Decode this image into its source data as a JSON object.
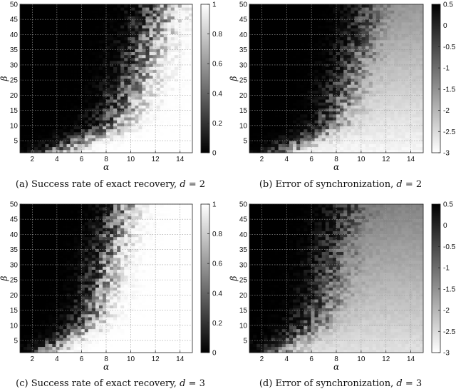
{
  "chart_data": [
    {
      "id": "a",
      "type": "heatmap",
      "caption_prefix": "(a) Success rate of exact recovery, ",
      "caption_math": "d",
      "caption_suffix": " = 2",
      "xlabel": "α",
      "ylabel": "β",
      "xlim": [
        1,
        15
      ],
      "ylim": [
        1,
        50
      ],
      "xticks": [
        2,
        4,
        6,
        8,
        10,
        12,
        14
      ],
      "yticks": [
        5,
        10,
        15,
        20,
        25,
        30,
        35,
        40,
        45,
        50
      ],
      "colorbar": {
        "min": 0,
        "max": 1,
        "ticks": [
          0,
          0.2,
          0.4,
          0.6,
          0.8,
          1
        ],
        "tick_labels": [
          "0",
          "0.2",
          "0.4",
          "0.6",
          "0.8",
          "1"
        ],
        "low_color": "#000000",
        "high_color": "#ffffff"
      },
      "grid": true,
      "pattern": {
        "metric": "success",
        "boundary": [
          [
            1,
            3.5
          ],
          [
            10,
            8.6
          ],
          [
            20,
            9.9
          ],
          [
            30,
            10.8
          ],
          [
            40,
            11.6
          ],
          [
            50,
            12.5
          ]
        ],
        "transition_width": 2.2
      }
    },
    {
      "id": "b",
      "type": "heatmap",
      "caption_prefix": "(b) Error of synchronization, ",
      "caption_math": "d",
      "caption_suffix": " = 2",
      "xlabel": "α",
      "ylabel": "β",
      "xlim": [
        1,
        15
      ],
      "ylim": [
        1,
        50
      ],
      "xticks": [
        2,
        4,
        6,
        8,
        10,
        12,
        14
      ],
      "yticks": [
        5,
        10,
        15,
        20,
        25,
        30,
        35,
        40,
        45,
        50
      ],
      "colorbar": {
        "min": -3,
        "max": 0.5,
        "ticks": [
          0.5,
          0,
          -0.5,
          -1,
          -1.5,
          -2,
          -2.5,
          -3
        ],
        "tick_labels": [
          "0.5",
          "0",
          "-0.5",
          "-1",
          "-1.5",
          "-2",
          "-2.5",
          "-3"
        ],
        "low_color": "#ffffff",
        "high_color": "#000000"
      },
      "grid": true,
      "pattern": {
        "metric": "error",
        "boundary": [
          [
            1,
            3.5
          ],
          [
            10,
            7.6
          ],
          [
            20,
            8.6
          ],
          [
            30,
            9.4
          ],
          [
            40,
            10.2
          ],
          [
            50,
            10.8
          ]
        ],
        "transition_width": 2.0,
        "far_value": -2.9,
        "far_value_top": -1.6
      }
    },
    {
      "id": "c",
      "type": "heatmap",
      "caption_prefix": "(c) Success rate of exact recovery, ",
      "caption_math": "d",
      "caption_suffix": " = 3",
      "xlabel": "α",
      "ylabel": "β",
      "xlim": [
        1,
        15
      ],
      "ylim": [
        1,
        50
      ],
      "xticks": [
        2,
        4,
        6,
        8,
        10,
        12,
        14
      ],
      "yticks": [
        5,
        10,
        15,
        20,
        25,
        30,
        35,
        40,
        45,
        50
      ],
      "colorbar": {
        "min": 0,
        "max": 1,
        "ticks": [
          0,
          0.2,
          0.4,
          0.6,
          0.8,
          1
        ],
        "tick_labels": [
          "0",
          "0.2",
          "0.4",
          "0.6",
          "0.8",
          "1"
        ],
        "low_color": "#000000",
        "high_color": "#ffffff"
      },
      "grid": true,
      "pattern": {
        "metric": "success",
        "boundary": [
          [
            1,
            2.9
          ],
          [
            10,
            6.4
          ],
          [
            20,
            7.4
          ],
          [
            30,
            8.0
          ],
          [
            40,
            8.6
          ],
          [
            50,
            9.3
          ]
        ],
        "transition_width": 1.8
      }
    },
    {
      "id": "d",
      "type": "heatmap",
      "caption_prefix": "(d) Error of synchronization, ",
      "caption_math": "d",
      "caption_suffix": " = 3",
      "xlabel": "α",
      "ylabel": "β",
      "xlim": [
        1,
        15
      ],
      "ylim": [
        1,
        50
      ],
      "xticks": [
        2,
        4,
        6,
        8,
        10,
        12,
        14
      ],
      "yticks": [
        5,
        10,
        15,
        20,
        25,
        30,
        35,
        40,
        45,
        50
      ],
      "colorbar": {
        "min": -3,
        "max": 0.5,
        "ticks": [
          0.5,
          0,
          -0.5,
          -1,
          -1.5,
          -2,
          -2.5,
          -3
        ],
        "tick_labels": [
          "0.5",
          "0",
          "-0.5",
          "-1",
          "-1.5",
          "-2",
          "-2.5",
          "-3"
        ],
        "low_color": "#ffffff",
        "high_color": "#000000"
      },
      "grid": true,
      "pattern": {
        "metric": "error",
        "boundary": [
          [
            1,
            2.9
          ],
          [
            10,
            6.2
          ],
          [
            20,
            7.2
          ],
          [
            30,
            7.8
          ],
          [
            40,
            8.4
          ],
          [
            50,
            9.0
          ]
        ],
        "transition_width": 2.2,
        "far_value": -2.6,
        "far_value_top": -1.3
      }
    }
  ]
}
